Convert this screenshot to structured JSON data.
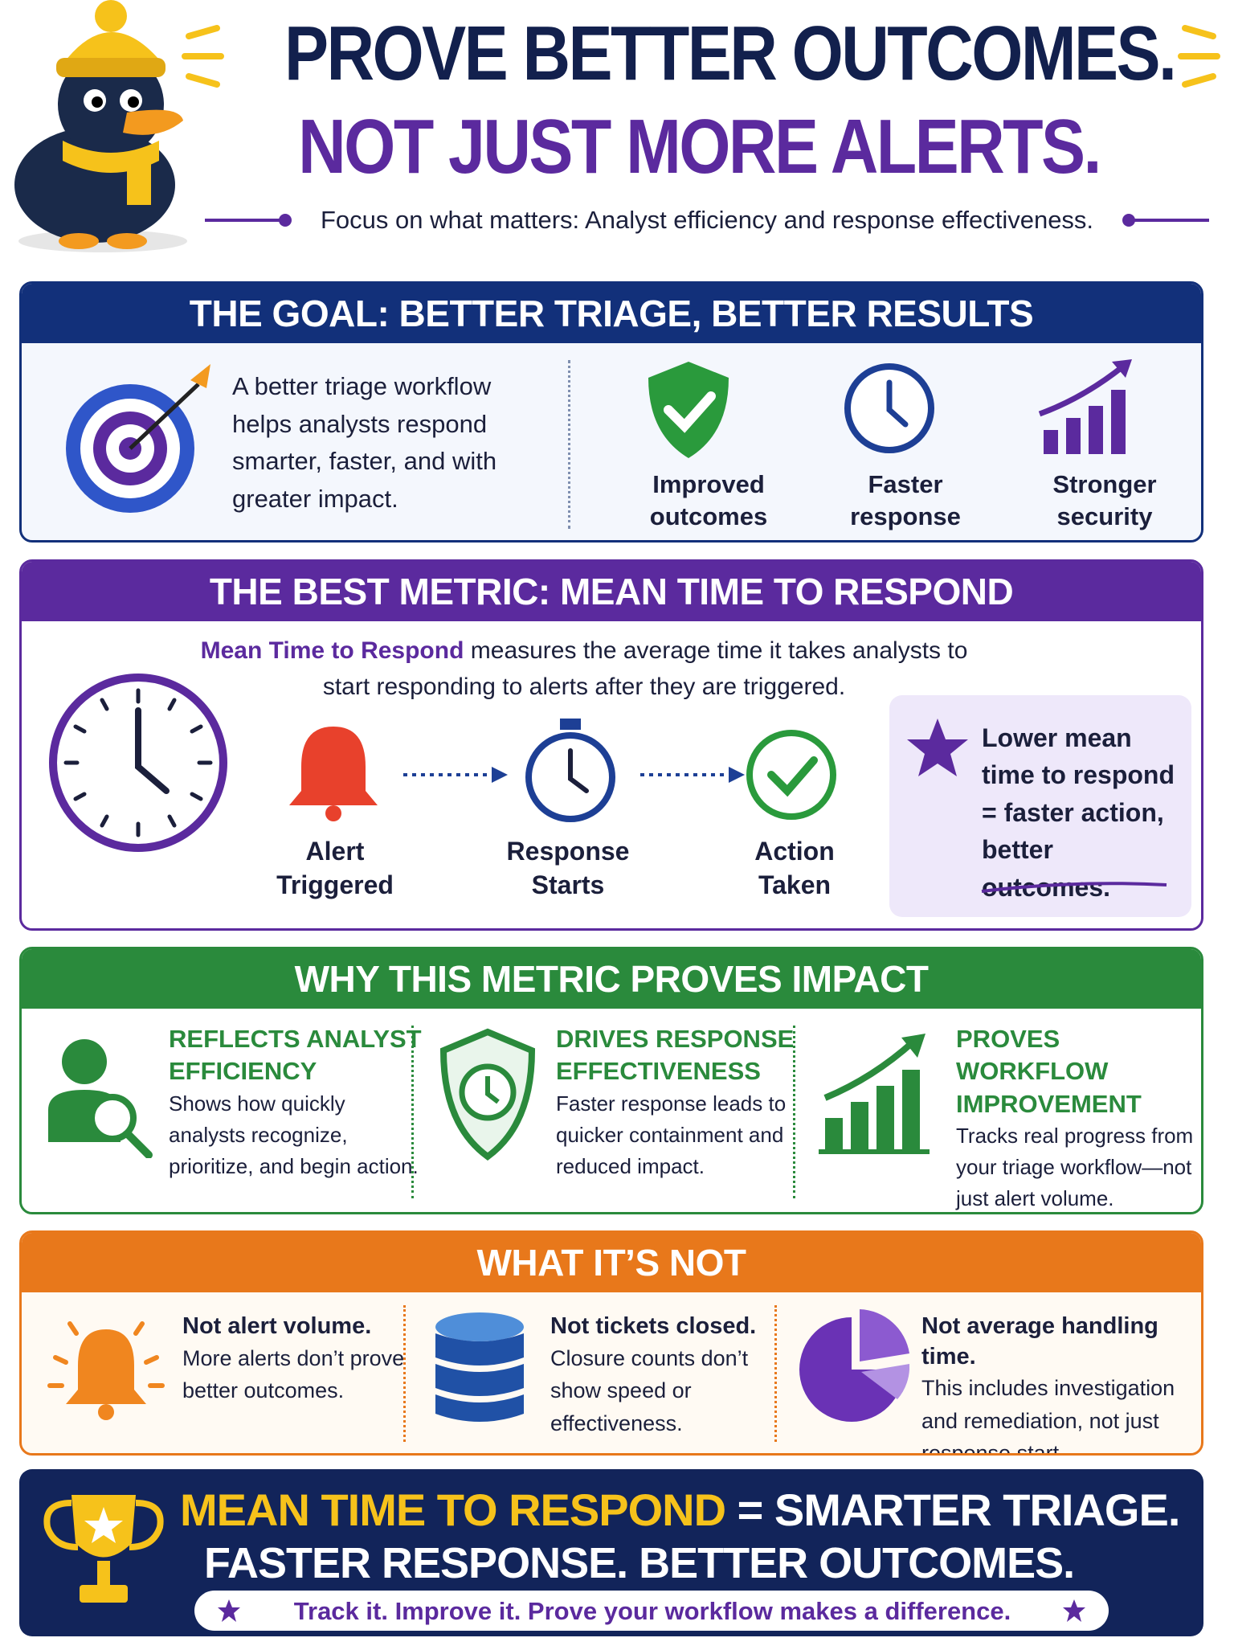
{
  "header": {
    "title_line1": "PROVE BETTER OUTCOMES.",
    "title_line2": "NOT JUST MORE ALERTS.",
    "subtitle": "Focus on what matters: Analyst efficiency and response effectiveness."
  },
  "goal": {
    "heading": "THE GOAL: BETTER TRIAGE, BETTER RESULTS",
    "text": "A better triage workflow helps analysts respond smarter, faster, and with greater impact.",
    "items": [
      "Improved outcomes",
      "Faster response",
      "Stronger security"
    ]
  },
  "metric": {
    "heading": "THE BEST METRIC: MEAN TIME TO RESPOND",
    "intro_highlight": "Mean Time to Respond",
    "intro_rest": "measures the average time it takes analysts to start responding to alerts after they are triggered.",
    "steps": [
      "Alert Triggered",
      "Response Starts",
      "Action Taken"
    ],
    "callout": "Lower mean time to respond = faster action, better outcomes."
  },
  "why": {
    "heading": "WHY THIS METRIC PROVES IMPACT",
    "items": [
      {
        "title": "REFLECTS ANALYST EFFICIENCY",
        "text": "Shows how quickly analysts recognize, prioritize, and begin action."
      },
      {
        "title": "DRIVES RESPONSE EFFECTIVENESS",
        "text": "Faster response leads to quicker containment and reduced impact."
      },
      {
        "title": "PROVES WORKFLOW IMPROVEMENT",
        "text": "Tracks real progress from your triage workflow—not just alert volume."
      }
    ]
  },
  "not": {
    "heading": "WHAT IT’S NOT",
    "items": [
      {
        "title": "Not alert volume.",
        "text": "More alerts don’t prove better outcomes."
      },
      {
        "title": "Not tickets closed.",
        "text": "Closure counts don’t show speed or effectiveness."
      },
      {
        "title": "Not average handling time.",
        "text": "This includes investigation and remediation, not just response start."
      }
    ]
  },
  "footer": {
    "highlight": "MEAN TIME TO RESPOND",
    "line1_rest": "= SMARTER TRIAGE.",
    "line2": "FASTER RESPONSE. BETTER OUTCOMES.",
    "tagline": "Track it. Improve it. Prove your workflow makes a difference."
  }
}
